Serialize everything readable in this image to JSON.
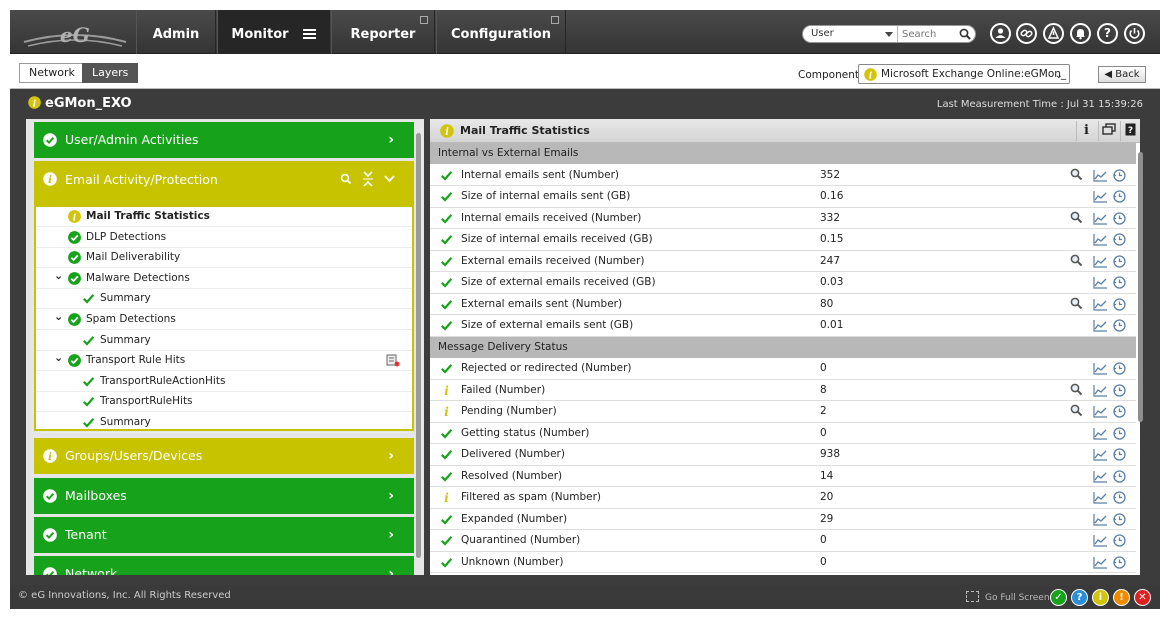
{
  "colors": {
    "ok_green": "#17a21b",
    "warn_yellow": "#c7c300",
    "info_yellow": "#d1c40a",
    "topbar": "#3c3c3c"
  },
  "topnav": {
    "logo_text": "eG",
    "tabs": [
      {
        "label": "Admin"
      },
      {
        "label": "Monitor"
      },
      {
        "label": "Reporter"
      },
      {
        "label": "Configuration"
      }
    ],
    "search": {
      "scope": "User",
      "placeholder": "Search"
    },
    "icons": [
      "user-icon",
      "link-icon",
      "alarm-icon",
      "bell-icon",
      "help-icon",
      "power-icon"
    ]
  },
  "subnav": {
    "tabs": [
      {
        "label": "Network"
      },
      {
        "label": "Layers"
      }
    ],
    "component_label": "Component",
    "component_value": "Microsoft Exchange Online:eGMon_",
    "back_label": "Back"
  },
  "page": {
    "title": "eGMon_EXO",
    "last_measurement": "Last Measurement Time : Jul 31 15:39:26"
  },
  "layers": {
    "groups": [
      {
        "label": "User/Admin Activities",
        "status": "ok"
      },
      {
        "label": "Email Activity/Protection",
        "status": "warn",
        "expanded": true
      },
      {
        "label": "Groups/Users/Devices",
        "status": "warn"
      },
      {
        "label": "Mailboxes",
        "status": "ok"
      },
      {
        "label": "Tenant",
        "status": "ok"
      },
      {
        "label": "Network",
        "status": "ok"
      }
    ],
    "tests": [
      {
        "label": "Mail Traffic Statistics",
        "status": "info",
        "selected": true
      },
      {
        "label": "DLP Detections",
        "status": "ok"
      },
      {
        "label": "Mail Deliverability",
        "status": "ok"
      },
      {
        "label": "Malware Detections",
        "status": "ok",
        "expandable": true
      },
      {
        "label": "Summary",
        "status": "check",
        "child": true
      },
      {
        "label": "Spam Detections",
        "status": "ok",
        "expandable": true
      },
      {
        "label": "Summary",
        "status": "check",
        "child": true
      },
      {
        "label": "Transport Rule Hits",
        "status": "ok",
        "expandable": true
      },
      {
        "label": "TransportRuleActionHits",
        "status": "check",
        "child": true
      },
      {
        "label": "TransportRuleHits",
        "status": "check",
        "child": true
      },
      {
        "label": "Summary",
        "status": "check",
        "child": true
      }
    ]
  },
  "measures": {
    "title": "Mail Traffic Statistics",
    "sections": [
      {
        "title": "Internal vs External Emails",
        "rows": [
          {
            "name": "Internal emails sent (Number)",
            "value": "352",
            "status": "check",
            "zoom": true
          },
          {
            "name": "Size of internal emails sent (GB)",
            "value": "0.16",
            "status": "check",
            "zoom": false
          },
          {
            "name": "Internal emails received (Number)",
            "value": "332",
            "status": "check",
            "zoom": true
          },
          {
            "name": "Size of internal emails received (GB)",
            "value": "0.15",
            "status": "check",
            "zoom": false
          },
          {
            "name": "External emails received (Number)",
            "value": "247",
            "status": "check",
            "zoom": true
          },
          {
            "name": "Size of external emails received (GB)",
            "value": "0.03",
            "status": "check",
            "zoom": false
          },
          {
            "name": "External emails sent (Number)",
            "value": "80",
            "status": "check",
            "zoom": true
          },
          {
            "name": "Size of external emails sent (GB)",
            "value": "0.01",
            "status": "check",
            "zoom": false
          }
        ]
      },
      {
        "title": "Message Delivery Status",
        "rows": [
          {
            "name": "Rejected or redirected (Number)",
            "value": "0",
            "status": "check",
            "zoom": false
          },
          {
            "name": "Failed (Number)",
            "value": "8",
            "status": "info",
            "zoom": true
          },
          {
            "name": "Pending (Number)",
            "value": "2",
            "status": "info",
            "zoom": true
          },
          {
            "name": "Getting status (Number)",
            "value": "0",
            "status": "check",
            "zoom": false
          },
          {
            "name": "Delivered (Number)",
            "value": "938",
            "status": "check",
            "zoom": false
          },
          {
            "name": "Resolved (Number)",
            "value": "14",
            "status": "check",
            "zoom": false
          },
          {
            "name": "Filtered as spam (Number)",
            "value": "20",
            "status": "info",
            "zoom": false
          },
          {
            "name": "Expanded (Number)",
            "value": "29",
            "status": "check",
            "zoom": false
          },
          {
            "name": "Quarantined (Number)",
            "value": "0",
            "status": "check",
            "zoom": false
          },
          {
            "name": "Unknown (Number)",
            "value": "0",
            "status": "check",
            "zoom": false
          }
        ]
      }
    ]
  },
  "footer": {
    "copyright": "© eG Innovations, Inc. All Rights Reserved",
    "fullscreen": "Go Full Screen",
    "status_dots": [
      {
        "name": "ok",
        "color": "#17a21b",
        "glyph": "✓"
      },
      {
        "name": "help",
        "color": "#2b8fd8",
        "glyph": "?"
      },
      {
        "name": "info",
        "color": "#d1c40a",
        "glyph": "i"
      },
      {
        "name": "warning",
        "color": "#f08a00",
        "glyph": "!"
      },
      {
        "name": "critical",
        "color": "#e02020",
        "glyph": "✕"
      }
    ]
  }
}
